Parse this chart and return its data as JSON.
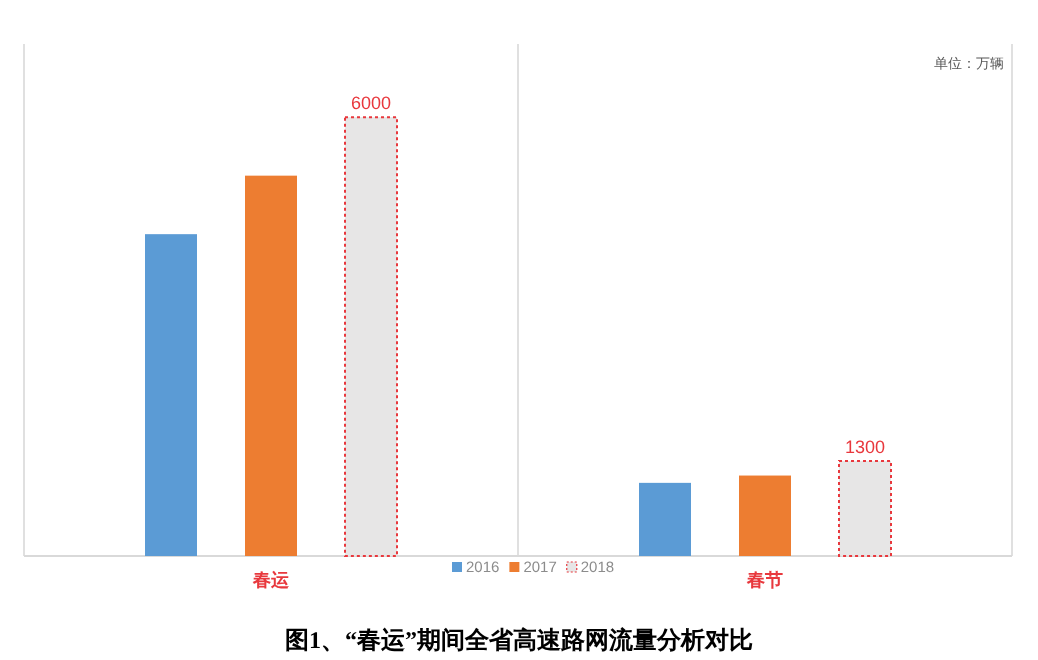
{
  "chart_data": {
    "type": "bar",
    "title": "图1、“春运”期间全省高速路网流量分析对比",
    "categories": [
      "春运",
      "春节"
    ],
    "series": [
      {
        "name": "2016",
        "color": "#5b9bd5",
        "values": [
          4400,
          1000
        ]
      },
      {
        "name": "2017",
        "color": "#ed7d31",
        "values": [
          5200,
          1100
        ]
      },
      {
        "name": "2018",
        "color": "#e7e6e6",
        "values": [
          6000,
          1300
        ],
        "value_labels": [
          "6000",
          "1300"
        ],
        "line_style": "dotted"
      }
    ],
    "ylim": [
      0,
      7000
    ],
    "annotations": [
      "单位：万辆"
    ],
    "grid": "x",
    "legend": "bottom",
    "tick_labels": "x"
  }
}
